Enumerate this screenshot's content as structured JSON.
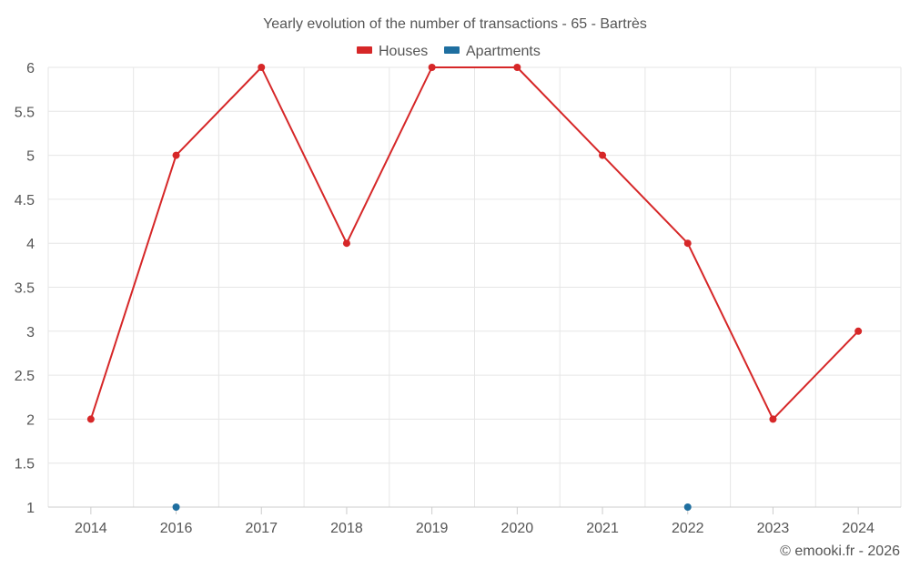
{
  "chart_data": {
    "type": "line",
    "title": "Yearly evolution of the number of transactions - 65 - Bartrès",
    "categories": [
      "2014",
      "2016",
      "2017",
      "2018",
      "2019",
      "2020",
      "2021",
      "2022",
      "2023",
      "2024"
    ],
    "y_ticks": [
      "1",
      "1.5",
      "2",
      "2.5",
      "3",
      "3.5",
      "4",
      "4.5",
      "5",
      "5.5",
      "6"
    ],
    "ylim": [
      1,
      6
    ],
    "grid": true,
    "legend_position": "top-center",
    "series": [
      {
        "name": "Houses",
        "color": "#d62728",
        "values": [
          2,
          5,
          6,
          4,
          6,
          6,
          5,
          4,
          2,
          3
        ]
      },
      {
        "name": "Apartments",
        "color": "#1f6fa0",
        "values": [
          null,
          1,
          null,
          null,
          null,
          null,
          null,
          1,
          null,
          null
        ]
      }
    ],
    "credit": "© emooki.fr - 2026"
  }
}
